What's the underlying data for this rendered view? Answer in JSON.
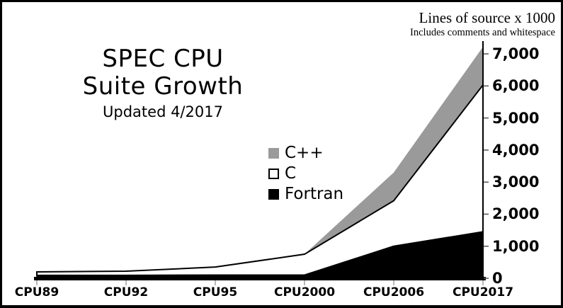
{
  "frame": {
    "background": "#ffffff",
    "border_color": "#000000"
  },
  "title": {
    "line1": "SPEC CPU",
    "line2": "Suite Growth",
    "subtitle": "Updated 4/2017"
  },
  "y_axis_title": {
    "label": "Lines of source x 1000",
    "note": "Includes comments and whitespace"
  },
  "chart_data": {
    "type": "area",
    "stacked": true,
    "title": "SPEC CPU Suite Growth",
    "subtitle": "Updated 4/2017",
    "ylabel": "Lines of source x 1000",
    "ylabel_note": "Includes comments and whitespace",
    "grid": false,
    "legend_position": "center-left of plot",
    "categories": [
      "CPU89",
      "CPU92",
      "CPU95",
      "CPU2000",
      "CPU2006",
      "CPU2017"
    ],
    "series": [
      {
        "name": "Fortran",
        "color": "#000000",
        "values": [
          90,
          90,
          100,
          100,
          1000,
          1450
        ]
      },
      {
        "name": "C",
        "color": "#ffffff",
        "values": [
          110,
          130,
          250,
          650,
          1420,
          4580
        ]
      },
      {
        "name": "C++",
        "color": "#9a9a9a",
        "values": [
          0,
          0,
          0,
          0,
          880,
          1190
        ]
      }
    ],
    "stacked_totals": [
      200,
      220,
      350,
      750,
      3300,
      7220
    ],
    "legend": [
      {
        "label": "C++",
        "color": "#9a9a9a"
      },
      {
        "label": "C",
        "color": "#ffffff"
      },
      {
        "label": "Fortran",
        "color": "#000000"
      }
    ],
    "y_ticks": [
      0,
      1000,
      2000,
      3000,
      4000,
      5000,
      6000,
      7000
    ],
    "y_tick_labels": [
      "0",
      "1,000",
      "2,000",
      "3,000",
      "4,000",
      "5,000",
      "6,000",
      "7,000"
    ],
    "ylim": [
      0,
      7400
    ],
    "axis_color": "#000000"
  }
}
